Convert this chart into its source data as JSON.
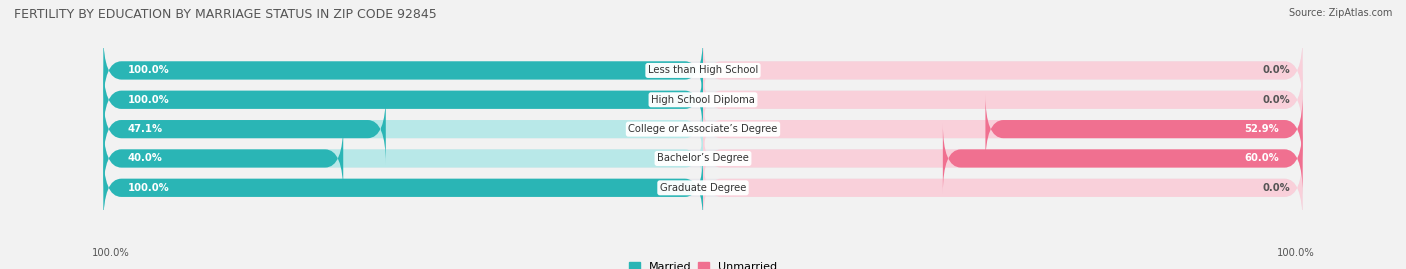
{
  "title": "FERTILITY BY EDUCATION BY MARRIAGE STATUS IN ZIP CODE 92845",
  "source": "Source: ZipAtlas.com",
  "categories": [
    "Less than High School",
    "High School Diploma",
    "College or Associate’s Degree",
    "Bachelor’s Degree",
    "Graduate Degree"
  ],
  "married": [
    100.0,
    100.0,
    47.1,
    40.0,
    100.0
  ],
  "unmarried": [
    0.0,
    0.0,
    52.9,
    60.0,
    0.0
  ],
  "married_color": "#2ab5b5",
  "unmarried_color": "#f07090",
  "married_light_color": "#b8e8e8",
  "unmarried_light_color": "#f9d0da",
  "row_bg_color": "#e8e8ec",
  "bg_color": "#f2f2f2",
  "title_color": "#555555",
  "text_color": "#555555",
  "axis_label_left": "100.0%",
  "axis_label_right": "100.0%",
  "legend_married": "Married",
  "legend_unmarried": "Unmarried"
}
